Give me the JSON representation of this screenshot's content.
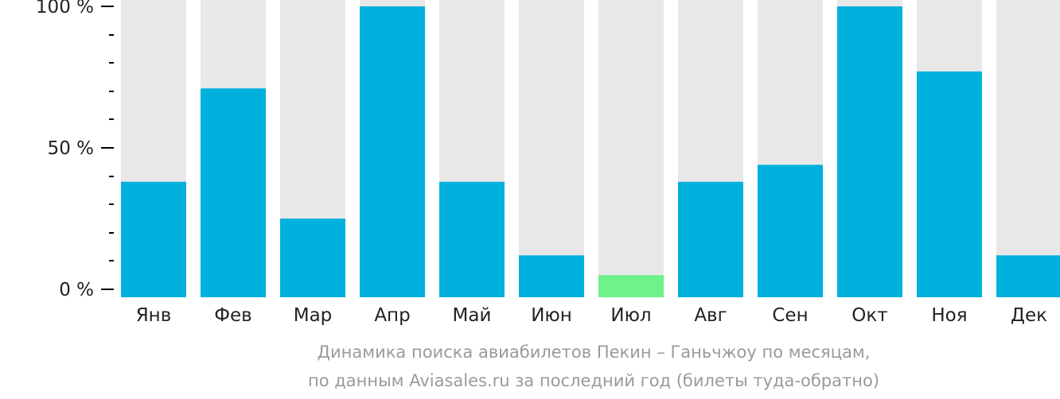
{
  "chart_data": {
    "type": "bar",
    "categories": [
      "Янв",
      "Фев",
      "Мар",
      "Апр",
      "Май",
      "Июн",
      "Июл",
      "Авг",
      "Сен",
      "Окт",
      "Ноя",
      "Дек"
    ],
    "values": [
      38,
      71,
      25,
      100,
      38,
      12,
      5,
      38,
      44,
      100,
      77,
      12
    ],
    "highlight_category": "Июл",
    "ylim": [
      0,
      100
    ],
    "y_tick_labels": [
      "0 %",
      "50 %",
      "100 %"
    ],
    "y_tick_values": [
      0,
      50,
      100
    ],
    "y_minor_tick_step": 10,
    "colors": {
      "bar": "#00b0dd",
      "highlight": "#6ef28a",
      "background_bar": "#e8e8e8",
      "axis": "#000000",
      "caption": "#9a9a9a"
    },
    "caption_line1": "Динамика поиска авиабилетов Пекин – Ганьчжоу по месяцам,",
    "caption_line2": "по данным Aviasales.ru за последний год (билеты туда-обратно)"
  }
}
